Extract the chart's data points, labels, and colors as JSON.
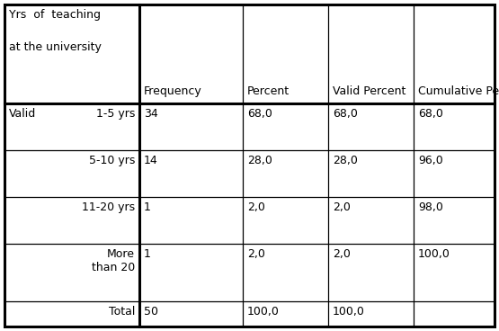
{
  "header_line1": "Yrs  of  teaching",
  "header_line2": "at the university",
  "col_headers": [
    "Frequency",
    "Percent",
    "Valid Percent",
    "Cumulative Percent"
  ],
  "rows": [
    {
      "col0": "Valid",
      "col1": "1-5 yrs",
      "freq": "34",
      "pct": "68,0",
      "vpct": "68,0",
      "cpct": "68,0"
    },
    {
      "col0": "",
      "col1": "5-10 yrs",
      "freq": "14",
      "pct": "28,0",
      "vpct": "28,0",
      "cpct": "96,0"
    },
    {
      "col0": "",
      "col1": "11-20 yrs",
      "freq": "1",
      "pct": "2,0",
      "vpct": "2,0",
      "cpct": "98,0"
    },
    {
      "col0": "",
      "col1": "More\nthan 20",
      "freq": "1",
      "pct": "2,0",
      "vpct": "2,0",
      "cpct": "100,0"
    },
    {
      "col0": "",
      "col1": "Total",
      "freq": "50",
      "pct": "100,0",
      "vpct": "100,0",
      "cpct": ""
    }
  ],
  "background_color": "#ffffff",
  "border_color": "#000000",
  "text_color": "#000000",
  "font_size": 9.0
}
